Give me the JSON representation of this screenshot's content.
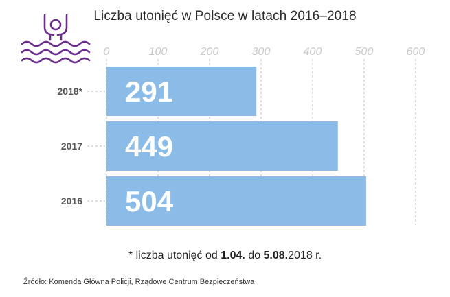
{
  "title": "Liczba utonięć w Polsce w latach 2016–2018",
  "footnote": {
    "prefix": "* liczba utonięć od ",
    "date_from": "1.04.",
    "middle": " do ",
    "date_to": "5.08.",
    "suffix": "2018 r."
  },
  "source": "Źródło: Komenda Główna Policji, Rządowe Centrum Bezpieczeństwa",
  "icon": "swimmer-drowning-icon",
  "colors": {
    "bar": "#8bbce8",
    "icon": "#6b2d8c",
    "grid": "#bbbbbb",
    "tick_text": "#c8c8c8"
  },
  "chart_data": {
    "type": "bar",
    "orientation": "horizontal",
    "title": "Liczba utonięć w Polsce w latach 2016–2018",
    "categories": [
      "2018*",
      "2017",
      "2016"
    ],
    "values": [
      291,
      449,
      504
    ],
    "value_labels": [
      "291",
      "449",
      "504"
    ],
    "xticks": [
      0,
      100,
      200,
      300,
      400,
      500,
      600
    ],
    "xtick_labels": [
      "0",
      "100",
      "200",
      "300",
      "400",
      "500",
      "600"
    ],
    "xlim": [
      0,
      600
    ],
    "xlabel": "",
    "ylabel": "",
    "grid": "vertical dashed",
    "axis_position": "top"
  }
}
